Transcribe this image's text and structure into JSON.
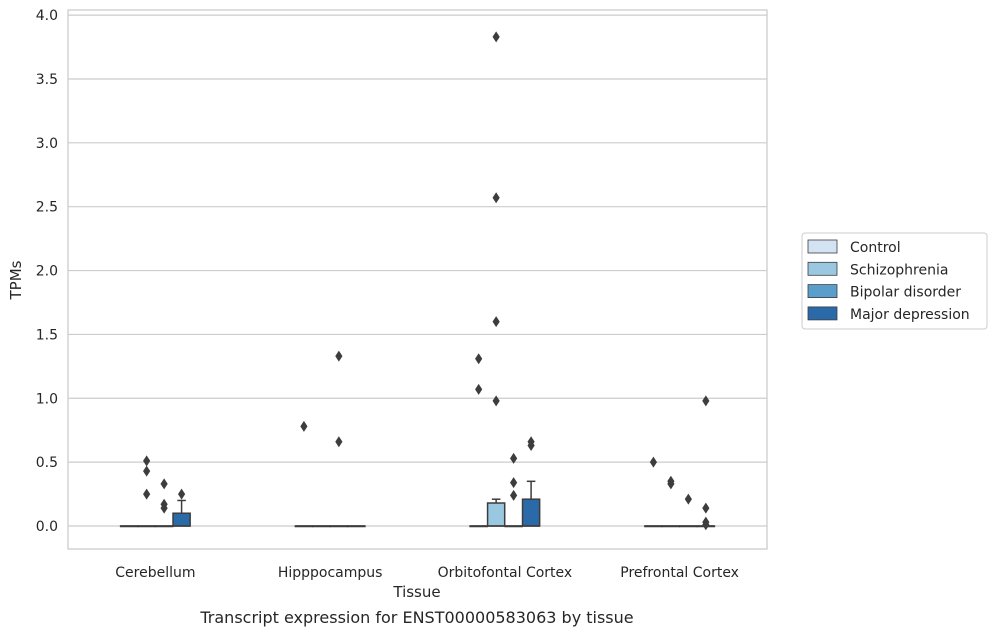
{
  "chart_data": {
    "type": "box",
    "xlabel": "Tissue",
    "ylabel": "TPMs",
    "caption": "Transcript expression for ENST00000583063 by tissue",
    "ylim": [
      -0.18,
      4.04
    ],
    "yticks": [
      "0.0",
      "0.5",
      "1.0",
      "1.5",
      "2.0",
      "2.5",
      "3.0",
      "3.5",
      "4.0"
    ],
    "grid": "horizontal",
    "legend_position": "right",
    "categories": [
      "Cerebellum",
      "Hipppocampus",
      "Orbitofontal Cortex",
      "Prefrontal Cortex"
    ],
    "series": [
      {
        "name": "Control",
        "color": "#d4e3f3",
        "boxes": [
          {
            "q1": 0,
            "median": 0,
            "q3": 0,
            "whisker_low": 0,
            "whisker_high": 0,
            "outliers": []
          },
          {
            "q1": 0,
            "median": 0,
            "q3": 0,
            "whisker_low": 0,
            "whisker_high": 0,
            "outliers": [
              0.78
            ]
          },
          {
            "q1": 0,
            "median": 0,
            "q3": 0,
            "whisker_low": 0,
            "whisker_high": 0,
            "outliers": [
              1.31,
              1.07
            ]
          },
          {
            "q1": 0,
            "median": 0,
            "q3": 0,
            "whisker_low": 0,
            "whisker_high": 0,
            "outliers": [
              0.5
            ]
          }
        ]
      },
      {
        "name": "Schizophrenia",
        "color": "#9ac8e0",
        "boxes": [
          {
            "q1": 0,
            "median": 0,
            "q3": 0,
            "whisker_low": 0,
            "whisker_high": 0,
            "outliers": [
              0.51,
              0.43,
              0.25
            ]
          },
          {
            "q1": 0,
            "median": 0,
            "q3": 0,
            "whisker_low": 0,
            "whisker_high": 0,
            "outliers": []
          },
          {
            "q1": 0,
            "median": 0,
            "q3": 0.18,
            "whisker_low": 0,
            "whisker_high": 0.21,
            "outliers": [
              3.83,
              2.57,
              1.6,
              0.98
            ]
          },
          {
            "q1": 0,
            "median": 0,
            "q3": 0,
            "whisker_low": 0,
            "whisker_high": 0,
            "outliers": [
              0.35,
              0.33
            ]
          }
        ]
      },
      {
        "name": "Bipolar disorder",
        "color": "#5a9fcb",
        "boxes": [
          {
            "q1": 0,
            "median": 0,
            "q3": 0,
            "whisker_low": 0,
            "whisker_high": 0,
            "outliers": [
              0.33,
              0.17,
              0.14
            ]
          },
          {
            "q1": 0,
            "median": 0,
            "q3": 0,
            "whisker_low": 0,
            "whisker_high": 0,
            "outliers": [
              1.33,
              0.66
            ]
          },
          {
            "q1": 0,
            "median": 0,
            "q3": 0,
            "whisker_low": 0,
            "whisker_high": 0,
            "outliers": [
              0.53,
              0.34,
              0.24
            ]
          },
          {
            "q1": 0,
            "median": 0,
            "q3": 0,
            "whisker_low": 0,
            "whisker_high": 0,
            "outliers": [
              0.21
            ]
          }
        ]
      },
      {
        "name": "Major depression",
        "color": "#2b6aa8",
        "boxes": [
          {
            "q1": 0,
            "median": 0,
            "q3": 0.1,
            "whisker_low": 0,
            "whisker_high": 0.2,
            "outliers": [
              0.25
            ]
          },
          {
            "q1": 0,
            "median": 0,
            "q3": 0,
            "whisker_low": 0,
            "whisker_high": 0,
            "outliers": []
          },
          {
            "q1": 0,
            "median": 0,
            "q3": 0.21,
            "whisker_low": 0,
            "whisker_high": 0.35,
            "outliers": [
              0.66,
              0.63
            ]
          },
          {
            "q1": 0,
            "median": 0,
            "q3": 0,
            "whisker_low": 0,
            "whisker_high": 0,
            "outliers": [
              0.98,
              0.14,
              0.03,
              0.01
            ]
          }
        ]
      }
    ]
  }
}
